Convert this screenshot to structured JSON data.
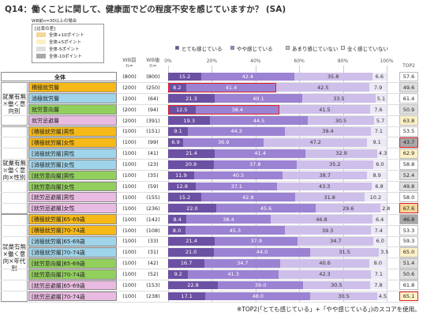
{
  "chart_data": {
    "type": "stacked_bar_table",
    "title": "Q14：働くことに関して、健康面でどの程度不安を感じていますか？ (SA)",
    "diff_legend": {
      "note": "WB前n=30以上の場合",
      "title": "[比率の差]",
      "items": [
        {
          "label": "全体+10ポイント",
          "color": "#f3d79a"
        },
        {
          "label": "全体+5ポイント",
          "color": "#fcf0c4"
        },
        {
          "label": "全体-5ポイント",
          "color": "#dedede"
        },
        {
          "label": "全体-10ポイント",
          "color": "#a8a8a8"
        }
      ]
    },
    "col_before": "WB前",
    "col_after": "WB後",
    "n_prefix": "n=",
    "top2_header": "TOP2",
    "series": [
      {
        "name": "とても感じている",
        "color": "#6b50a3"
      },
      {
        "name": "やや感じている",
        "color": "#9b82d2"
      },
      {
        "name": "あまり感じていない",
        "color": "#cdbfe9"
      },
      {
        "name": "全く感じていない",
        "color": "#ede8f6"
      }
    ],
    "xlim": [
      0,
      100
    ],
    "xticks": [
      {
        "value": 0,
        "label": "0%"
      },
      {
        "value": 20,
        "label": "20%"
      },
      {
        "value": 40,
        "label": "40%"
      },
      {
        "value": 60,
        "label": "60%"
      },
      {
        "value": 80,
        "label": "80%"
      },
      {
        "value": 100,
        "label": "100%"
      }
    ],
    "groups": [
      {
        "rows": [
          {
            "label": "全体",
            "color": "#ffffff",
            "n_before": "(800)",
            "n_after": "(800)",
            "values": [
              15.2,
              42.4,
              35.8,
              6.6
            ],
            "top2": 57.6
          }
        ]
      },
      {
        "label": "就業有無×働く意向別",
        "rows": [
          {
            "label": "積極就労層",
            "color": "#f6b917",
            "n_before": "(200)",
            "n_after": "(250)",
            "values": [
              8.2,
              41.4,
              42.5,
              7.9
            ],
            "top2": 49.6,
            "top2_shade": "#dedede",
            "bar_outline": true
          },
          {
            "label": "消極就労層",
            "color": "#9fd4ea",
            "n_before": "(200)",
            "n_after": "(64)",
            "values": [
              21.3,
              40.1,
              33.5,
              5.1
            ],
            "top2": 61.4
          },
          {
            "label": "就労意向層",
            "color": "#92cf5d",
            "n_before": "(200)",
            "n_after": "(94)",
            "values": [
              12.5,
              38.4,
              41.5,
              7.6
            ],
            "top2": 50.9,
            "top2_shade": "#dedede",
            "bar_outline": true
          },
          {
            "label": "就労忌避層",
            "color": "#eabbe2",
            "n_before": "(200)",
            "n_after": "(391)",
            "values": [
              19.3,
              44.5,
              30.5,
              5.7
            ],
            "top2": 63.8,
            "top2_shade": "#fcf0c4"
          }
        ]
      },
      {
        "label": "就業有無×働く意向×性別",
        "rows": [
          {
            "label": "[積極就労層]男性",
            "color": "#f6b917",
            "n_before": "(100)",
            "n_after": "(151)",
            "values": [
              9.1,
              44.3,
              39.4,
              7.1
            ],
            "top2": 53.5
          },
          {
            "label": "[積極就労層]女性",
            "color": "#f6b917",
            "n_before": "(100)",
            "n_after": "(99)",
            "values": [
              6.9,
              36.9,
              47.2,
              9.1
            ],
            "top2": 43.7,
            "top2_shade": "#a8a8a8",
            "top2_outline": true
          },
          {
            "label": "[消極就労層]男性",
            "color": "#9fd4ea",
            "n_before": "(100)",
            "n_after": "(41)",
            "values": [
              21.4,
              41.4,
              32.9,
              4.3
            ],
            "top2": 62.9,
            "top2_shade": "#fcf0c4"
          },
          {
            "label": "[消極就労層]女性",
            "color": "#9fd4ea",
            "n_before": "(100)",
            "n_after": "(23)",
            "values": [
              20.9,
              37.8,
              35.2,
              6.0
            ],
            "value_labels": [
              "20.9",
              "37.8",
              "35.2",
              "6.0"
            ],
            "top2": 58.8
          },
          {
            "label": "[就労意向層]男性",
            "color": "#92cf5d",
            "n_before": "(100)",
            "n_after": "(35)",
            "values": [
              11.9,
              40.5,
              38.7,
              8.9
            ],
            "top2": 52.4,
            "top2_shade": "#dedede"
          },
          {
            "label": "[就労意向層]女性",
            "color": "#92cf5d",
            "n_before": "(100)",
            "n_after": "(59)",
            "values": [
              12.8,
              37.1,
              43.3,
              6.8
            ],
            "top2": 49.8,
            "top2_shade": "#dedede"
          },
          {
            "label": "[就労忌避層]男性",
            "color": "#eabbe2",
            "n_before": "(100)",
            "n_after": "(155)",
            "values": [
              15.2,
              42.8,
              31.8,
              10.2
            ],
            "top2": 58.0,
            "top2_label": "58.0"
          },
          {
            "label": "[就労忌避層]女性",
            "color": "#eabbe2",
            "n_before": "(100)",
            "n_after": "(236)",
            "values": [
              22.0,
              45.6,
              29.6,
              2.8
            ],
            "value_labels": [
              "22.0",
              "45.6",
              "29.6",
              "2.8"
            ],
            "top2": 67.6,
            "top2_shade": "#f3d79a",
            "top2_outline": true
          }
        ]
      },
      {
        "label": "就業有無×働く意向×年代別",
        "rows": [
          {
            "label": "[積極就労層]65-69歳",
            "color": "#f6b917",
            "n_before": "(100)",
            "n_after": "(142)",
            "values": [
              8.4,
              38.4,
              46.8,
              6.4
            ],
            "top2": 46.8,
            "top2_shade": "#a8a8a8"
          },
          {
            "label": "[積極就労層]70-74歳",
            "color": "#f6b917",
            "n_before": "(100)",
            "n_after": "(108)",
            "values": [
              8.0,
              45.3,
              39.3,
              7.4
            ],
            "value_labels": [
              "8.0",
              "45.3",
              "39.3",
              "7.4"
            ],
            "top2": 53.3
          },
          {
            "label": "[消極就労層]65-69歳",
            "color": "#9fd4ea",
            "n_before": "(100)",
            "n_after": "(33)",
            "values": [
              21.4,
              37.9,
              34.7,
              6.0
            ],
            "value_labels": [
              "21.4",
              "37.9",
              "34.7",
              "6.0"
            ],
            "top2": 59.3
          },
          {
            "label": "[消極就労層]70-74歳",
            "color": "#9fd4ea",
            "n_before": "(100)",
            "n_after": "(31)",
            "values": [
              21.0,
              44.0,
              31.5,
              3.5
            ],
            "value_labels": [
              "21.0",
              "44.0",
              "31.5",
              "3.5"
            ],
            "top2": 65.0,
            "top2_label": "65.0",
            "top2_shade": "#fcf0c4"
          },
          {
            "label": "[就労意向層]65-69歳",
            "color": "#92cf5d",
            "n_before": "(100)",
            "n_after": "(42)",
            "values": [
              16.7,
              34.7,
              40.6,
              8.0
            ],
            "value_labels": [
              "16.7",
              "34.7",
              "40.6",
              "8.0"
            ],
            "top2": 51.4,
            "top2_shade": "#dedede"
          },
          {
            "label": "[就労意向層]70-74歳",
            "color": "#92cf5d",
            "n_before": "(100)",
            "n_after": "(52)",
            "values": [
              9.2,
              41.3,
              42.3,
              7.1
            ],
            "top2": 50.6,
            "top2_shade": "#dedede"
          },
          {
            "label": "[就労忌避層]65-69歳",
            "color": "#eabbe2",
            "n_before": "(100)",
            "n_after": "(153)",
            "values": [
              22.8,
              39.0,
              30.5,
              7.8
            ],
            "value_labels": [
              "22.8",
              "39.0",
              "30.5",
              "7.8"
            ],
            "top2": 61.8
          },
          {
            "label": "[就労忌避層]70-74歳",
            "color": "#eabbe2",
            "n_before": "(100)",
            "n_after": "(238)",
            "values": [
              17.1,
              48.0,
              30.5,
              4.5
            ],
            "value_labels": [
              "17.1",
              "48.0",
              "30.5",
              "4.5"
            ],
            "top2": 65.1,
            "top2_shade": "#fcf0c4",
            "top2_outline": true
          }
        ]
      }
    ],
    "footnote": "※TOP2(「とても感じている」+「やや感じている」)のスコアを使用。"
  }
}
